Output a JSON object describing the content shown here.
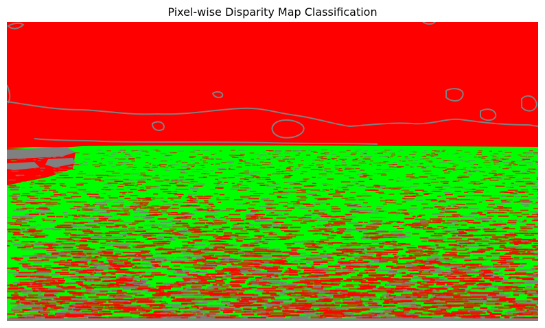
{
  "figure": {
    "title": "Pixel-wise Disparity Map Classification"
  },
  "colors": {
    "sky_class": "#ff0000",
    "ground_class": "#00ff00",
    "edge_class": "#808080",
    "background": "#ffffff"
  }
}
